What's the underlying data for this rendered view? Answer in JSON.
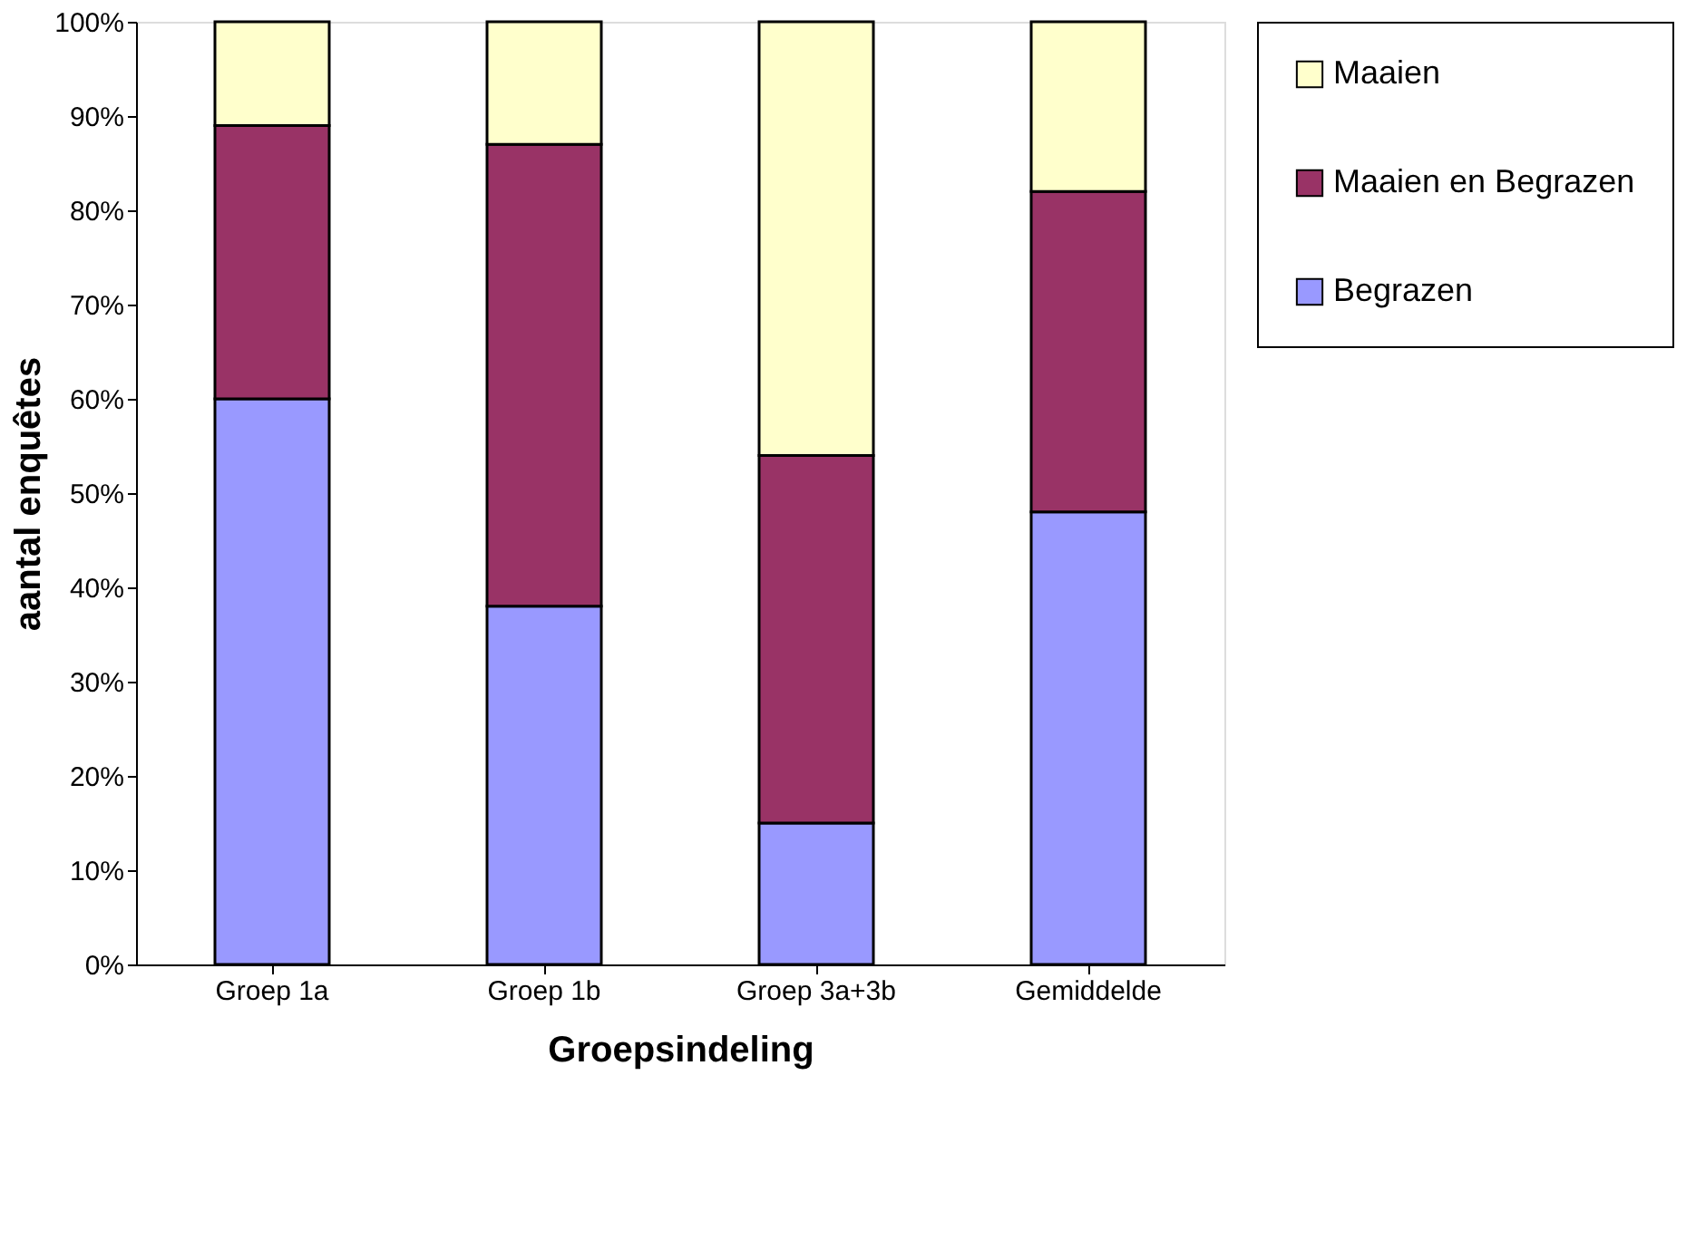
{
  "chart_data": {
    "type": "bar",
    "stacked": true,
    "xlabel": "Groepsindeling",
    "ylabel": "aantal enquêtes",
    "categories": [
      "Groep 1a",
      "Groep 1b",
      "Groep 3a+3b",
      "Gemiddelde"
    ],
    "series": [
      {
        "name": "Begrazen",
        "color": "#9999ff",
        "values": [
          60,
          38,
          15,
          48
        ]
      },
      {
        "name": "Maaien en Begrazen",
        "color": "#993366",
        "values": [
          29,
          49,
          39,
          34
        ]
      },
      {
        "name": "Maaien",
        "color": "#ffffcc",
        "values": [
          11,
          13,
          46,
          18
        ]
      }
    ],
    "ylim": [
      0,
      100
    ],
    "yticks": [
      {
        "value": 0,
        "label": "0%"
      },
      {
        "value": 10,
        "label": "10%"
      },
      {
        "value": 20,
        "label": "20%"
      },
      {
        "value": 30,
        "label": "30%"
      },
      {
        "value": 40,
        "label": "40%"
      },
      {
        "value": 50,
        "label": "50%"
      },
      {
        "value": 60,
        "label": "60%"
      },
      {
        "value": 70,
        "label": "70%"
      },
      {
        "value": 80,
        "label": "80%"
      },
      {
        "value": 90,
        "label": "90%"
      },
      {
        "value": 100,
        "label": "100%"
      }
    ],
    "grid": false,
    "legend": "right"
  }
}
